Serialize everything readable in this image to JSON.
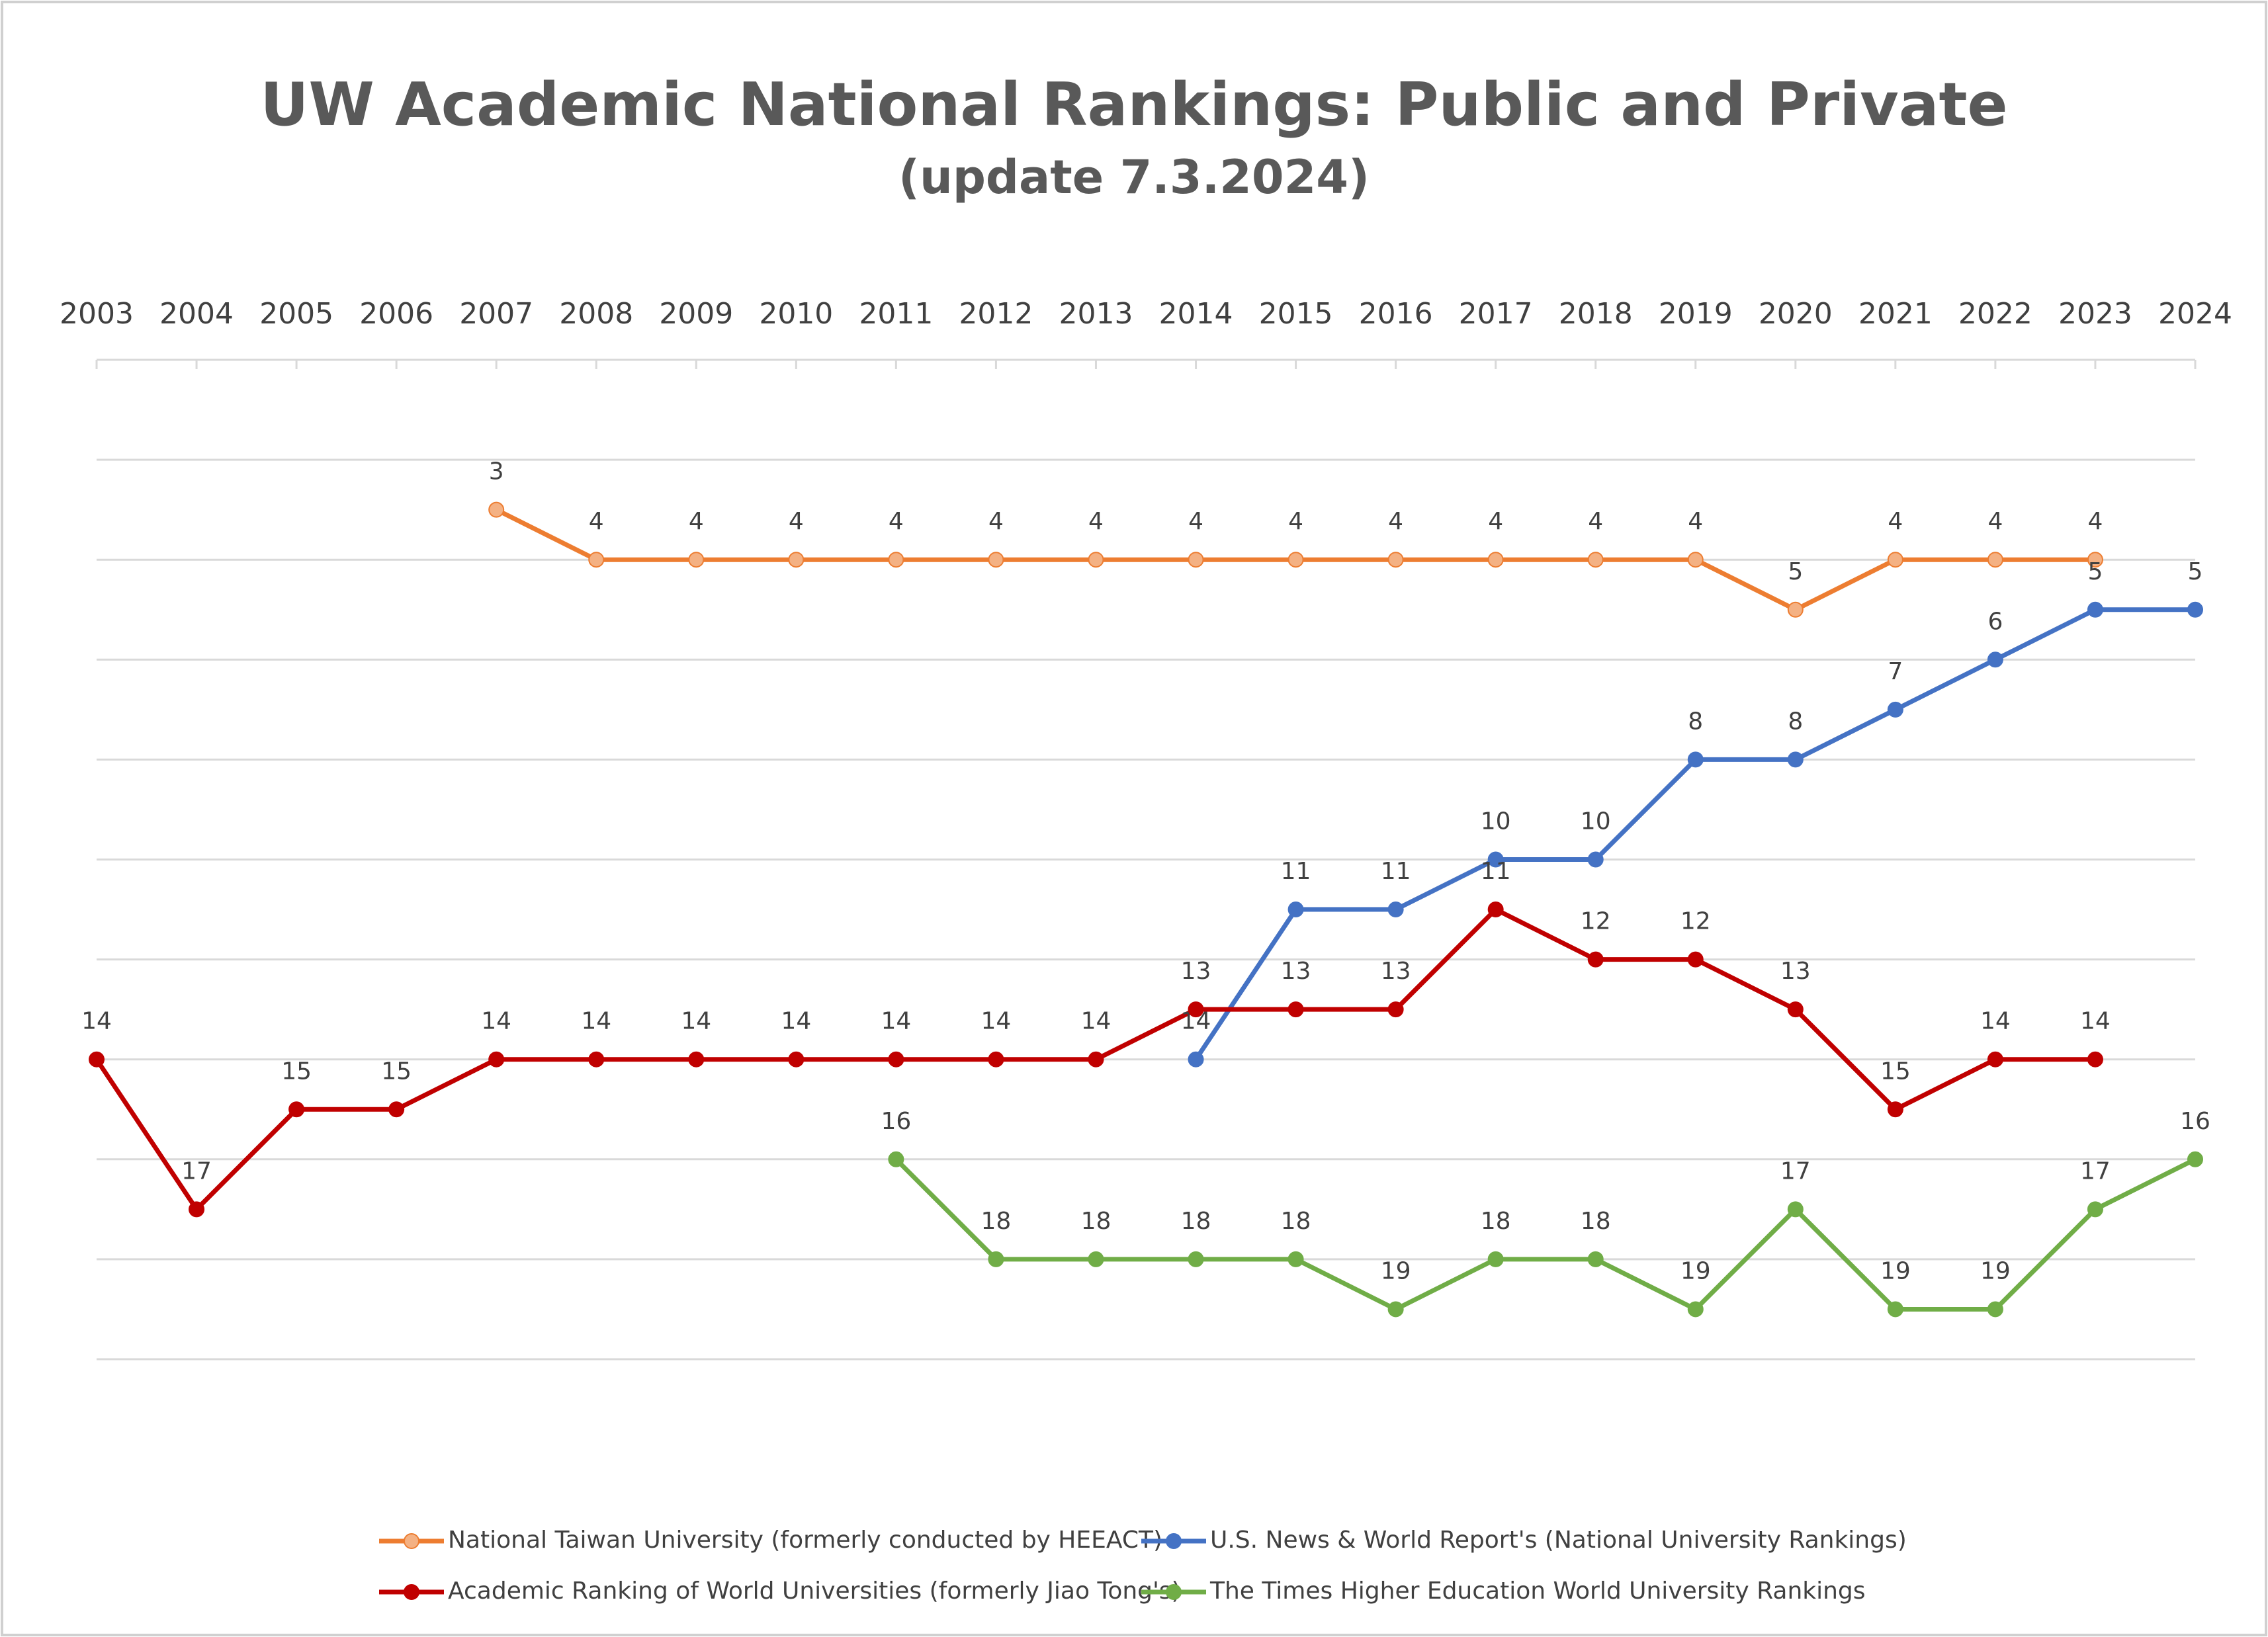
{
  "chart_data": {
    "type": "line",
    "title": "UW Academic National Rankings: Public and Private",
    "subtitle": "(update 7.3.2024)",
    "categories": [
      "2003",
      "2004",
      "2005",
      "2006",
      "2007",
      "2008",
      "2009",
      "2010",
      "2011",
      "2012",
      "2013",
      "2014",
      "2015",
      "2016",
      "2017",
      "2018",
      "2019",
      "2020",
      "2021",
      "2022",
      "2023",
      "2024"
    ],
    "ylim": [
      0,
      20
    ],
    "y_inverted": true,
    "yticks": [
      2,
      4,
      6,
      8,
      10,
      12,
      14,
      16,
      18,
      20
    ],
    "grid": true,
    "legend": "bottom",
    "series": [
      {
        "name": "National Taiwan University (formerly conducted by HEEACT)",
        "color": "#ED7D31",
        "marker_color": "#F4B183",
        "values": [
          null,
          null,
          null,
          null,
          3,
          4,
          4,
          4,
          4,
          4,
          4,
          4,
          4,
          4,
          4,
          4,
          4,
          5,
          4,
          4,
          4,
          null
        ]
      },
      {
        "name": "U.S. News & World Report's (National University Rankings)",
        "color": "#4472C4",
        "marker_color": "#4472C4",
        "values": [
          null,
          null,
          null,
          null,
          null,
          null,
          null,
          null,
          null,
          null,
          null,
          14,
          11,
          11,
          10,
          10,
          8,
          8,
          7,
          6,
          5,
          5
        ]
      },
      {
        "name": "Academic Ranking of World Universities (formerly Jiao Tong's)",
        "color": "#C00000",
        "marker_color": "#C00000",
        "values": [
          14,
          17,
          15,
          15,
          14,
          14,
          14,
          14,
          14,
          14,
          14,
          13,
          13,
          13,
          11,
          12,
          12,
          13,
          15,
          14,
          14,
          null
        ]
      },
      {
        "name": "The Times Higher Education World University Rankings",
        "color": "#70AD47",
        "marker_color": "#70AD47",
        "values": [
          null,
          null,
          null,
          null,
          null,
          null,
          null,
          null,
          16,
          18,
          18,
          18,
          18,
          19,
          18,
          18,
          19,
          17,
          19,
          19,
          17,
          16
        ]
      }
    ]
  }
}
